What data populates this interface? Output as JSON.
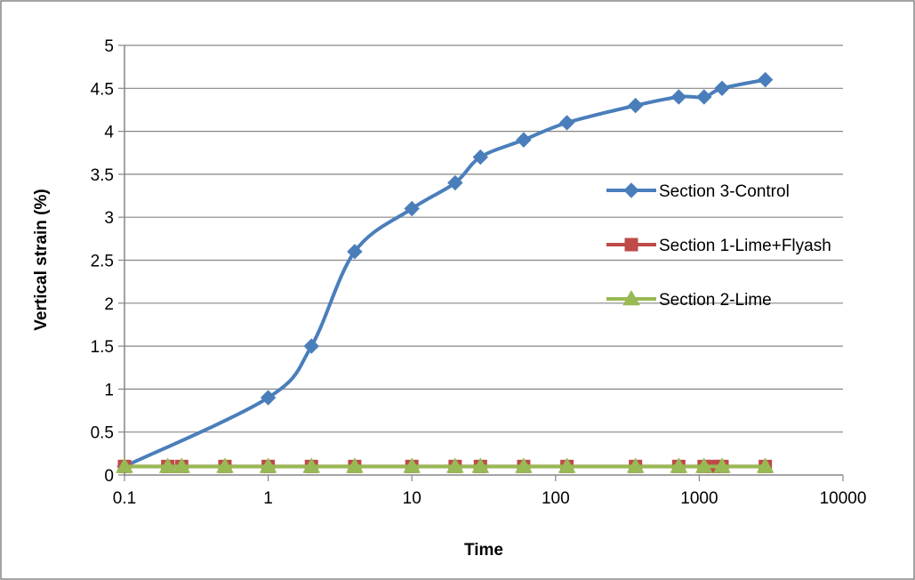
{
  "chart_data": {
    "type": "line",
    "title": "",
    "xlabel": "Time",
    "ylabel": "Vertical strain (%)",
    "x_scale": "log",
    "xlim": [
      0.1,
      10000
    ],
    "ylim": [
      0,
      5
    ],
    "x_ticks": [
      "0.1",
      "1",
      "10",
      "100",
      "1000",
      "10000"
    ],
    "y_ticks": [
      "0",
      "0.5",
      "1",
      "1.5",
      "2",
      "2.5",
      "3",
      "3.5",
      "4",
      "4.5",
      "5"
    ],
    "grid": "horizontal major gridlines",
    "legend_position": "right",
    "series": [
      {
        "name": "Section 3-Control",
        "color": "#4A7EBB",
        "marker": "diamond",
        "x": [
          0.1,
          1,
          2,
          4,
          10,
          20,
          30,
          60,
          120,
          360,
          720,
          1080,
          1440,
          2880
        ],
        "y": [
          0.1,
          0.9,
          1.5,
          2.6,
          3.1,
          3.4,
          3.7,
          3.9,
          4.1,
          4.3,
          4.4,
          4.4,
          4.5,
          4.6
        ]
      },
      {
        "name": "Section 1-Lime+Flyash",
        "color": "#BE4B48",
        "marker": "square",
        "x": [
          0.1,
          0.2,
          0.25,
          0.5,
          1,
          2,
          4,
          10,
          20,
          30,
          60,
          120,
          360,
          720,
          1080,
          1260,
          1440,
          2880
        ],
        "y": [
          0.1,
          0.1,
          0.1,
          0.1,
          0.1,
          0.1,
          0.1,
          0.1,
          0.1,
          0.1,
          0.1,
          0.1,
          0.1,
          0.1,
          0.1,
          0.1,
          0.1,
          0.1
        ]
      },
      {
        "name": "Section 2-Lime",
        "color": "#98B954",
        "marker": "triangle",
        "x": [
          0.1,
          0.2,
          0.25,
          0.5,
          1,
          2,
          4,
          10,
          20,
          30,
          60,
          120,
          360,
          720,
          1080,
          1440,
          2880
        ],
        "y": [
          0.1,
          0.1,
          0.1,
          0.1,
          0.1,
          0.1,
          0.1,
          0.1,
          0.1,
          0.1,
          0.1,
          0.1,
          0.1,
          0.1,
          0.1,
          0.1,
          0.1
        ]
      }
    ]
  }
}
